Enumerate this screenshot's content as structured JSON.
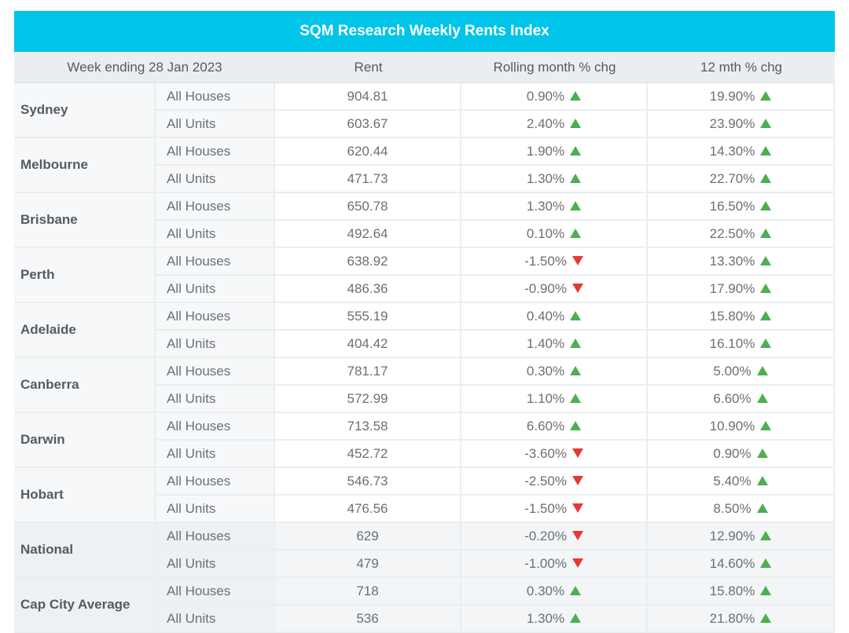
{
  "title": "SQM Research Weekly Rents Index",
  "headers": [
    "Week ending 28 Jan 2023",
    "Rent",
    "Rolling month % chg",
    "12 mth % chg"
  ],
  "colors": {
    "title_bg": "#00c4e8",
    "up": "#4caf50",
    "down": "#e53935"
  },
  "regions": [
    {
      "city": "Sydney",
      "rows": [
        {
          "type": "All Houses",
          "rent": "904.81",
          "month": "0.90%",
          "month_dir": "up",
          "year": "19.90%",
          "year_dir": "up"
        },
        {
          "type": "All Units",
          "rent": "603.67",
          "month": "2.40%",
          "month_dir": "up",
          "year": "23.90%",
          "year_dir": "up"
        }
      ]
    },
    {
      "city": "Melbourne",
      "rows": [
        {
          "type": "All Houses",
          "rent": "620.44",
          "month": "1.90%",
          "month_dir": "up",
          "year": "14.30%",
          "year_dir": "up"
        },
        {
          "type": "All Units",
          "rent": "471.73",
          "month": "1.30%",
          "month_dir": "up",
          "year": "22.70%",
          "year_dir": "up"
        }
      ]
    },
    {
      "city": "Brisbane",
      "rows": [
        {
          "type": "All Houses",
          "rent": "650.78",
          "month": "1.30%",
          "month_dir": "up",
          "year": "16.50%",
          "year_dir": "up"
        },
        {
          "type": "All Units",
          "rent": "492.64",
          "month": "0.10%",
          "month_dir": "up",
          "year": "22.50%",
          "year_dir": "up"
        }
      ]
    },
    {
      "city": "Perth",
      "rows": [
        {
          "type": "All Houses",
          "rent": "638.92",
          "month": "-1.50%",
          "month_dir": "down",
          "year": "13.30%",
          "year_dir": "up"
        },
        {
          "type": "All Units",
          "rent": "486.36",
          "month": "-0.90%",
          "month_dir": "down",
          "year": "17.90%",
          "year_dir": "up"
        }
      ]
    },
    {
      "city": "Adelaide",
      "rows": [
        {
          "type": "All Houses",
          "rent": "555.19",
          "month": "0.40%",
          "month_dir": "up",
          "year": "15.80%",
          "year_dir": "up"
        },
        {
          "type": "All Units",
          "rent": "404.42",
          "month": "1.40%",
          "month_dir": "up",
          "year": "16.10%",
          "year_dir": "up"
        }
      ]
    },
    {
      "city": "Canberra",
      "rows": [
        {
          "type": "All Houses",
          "rent": "781.17",
          "month": "0.30%",
          "month_dir": "up",
          "year": "5.00%",
          "year_dir": "up"
        },
        {
          "type": "All Units",
          "rent": "572.99",
          "month": "1.10%",
          "month_dir": "up",
          "year": "6.60%",
          "year_dir": "up"
        }
      ]
    },
    {
      "city": "Darwin",
      "rows": [
        {
          "type": "All Houses",
          "rent": "713.58",
          "month": "6.60%",
          "month_dir": "up",
          "year": "10.90%",
          "year_dir": "up"
        },
        {
          "type": "All Units",
          "rent": "452.72",
          "month": "-3.60%",
          "month_dir": "down",
          "year": "0.90%",
          "year_dir": "up"
        }
      ]
    },
    {
      "city": "Hobart",
      "rows": [
        {
          "type": "All Houses",
          "rent": "546.73",
          "month": "-2.50%",
          "month_dir": "down",
          "year": "5.40%",
          "year_dir": "up"
        },
        {
          "type": "All Units",
          "rent": "476.56",
          "month": "-1.50%",
          "month_dir": "down",
          "year": "8.50%",
          "year_dir": "up"
        }
      ]
    },
    {
      "city": "National",
      "aggregate": true,
      "rows": [
        {
          "type": "All Houses",
          "rent": "629",
          "month": "-0.20%",
          "month_dir": "down",
          "year": "12.90%",
          "year_dir": "up"
        },
        {
          "type": "All Units",
          "rent": "479",
          "month": "-1.00%",
          "month_dir": "down",
          "year": "14.60%",
          "year_dir": "up"
        }
      ]
    },
    {
      "city": "Cap City Average",
      "aggregate": true,
      "rows": [
        {
          "type": "All Houses",
          "rent": "718",
          "month": "0.30%",
          "month_dir": "up",
          "year": "15.80%",
          "year_dir": "up"
        },
        {
          "type": "All Units",
          "rent": "536",
          "month": "1.30%",
          "month_dir": "up",
          "year": "21.80%",
          "year_dir": "up"
        }
      ]
    }
  ]
}
